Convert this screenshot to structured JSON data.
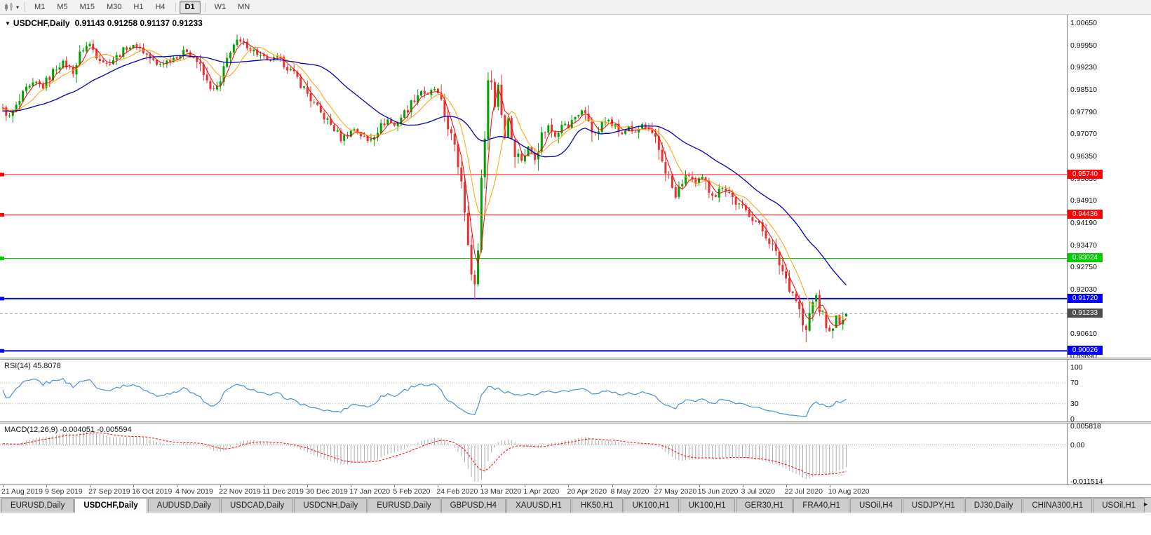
{
  "icons": {
    "chart_marker": "▼",
    "toolbar_caret": "▾",
    "tab_scroll_right": "►"
  },
  "toolbar": {
    "periods": [
      {
        "label": "M1",
        "active": false
      },
      {
        "label": "M5",
        "active": false
      },
      {
        "label": "M15",
        "active": false
      },
      {
        "label": "M30",
        "active": false
      },
      {
        "label": "H1",
        "active": false
      },
      {
        "label": "H4",
        "active": false
      },
      {
        "label": "D1",
        "active": true
      },
      {
        "label": "W1",
        "active": false
      },
      {
        "label": "MN",
        "active": false
      }
    ]
  },
  "chart": {
    "symbol_title": "USDCHF,Daily",
    "ohlc_text": "0.91143 0.91258 0.91137 0.91233",
    "open": "0.91143",
    "high": "0.91258",
    "low": "0.91137",
    "close": "0.91233",
    "last_price_label": "0.91233",
    "price_ticks": [
      "1.00650",
      "0.99950",
      "0.99230",
      "0.98510",
      "0.97790",
      "0.97070",
      "0.96350",
      "0.95630",
      "0.94910",
      "0.94190",
      "0.93470",
      "0.92750",
      "0.92030",
      "0.91310",
      "0.90610",
      "0.89890"
    ],
    "hlines": [
      {
        "price": 0.9574,
        "label": "0.95740",
        "color": "#ff0000",
        "thickness": 1
      },
      {
        "price": 0.94436,
        "label": "0.94436",
        "color": "#ff0000",
        "thickness": 1
      },
      {
        "price": 0.93024,
        "label": "0.93024",
        "color": "#00cc00",
        "thickness": 1
      },
      {
        "price": 0.9172,
        "label": "0.91720",
        "color": "#0000ff",
        "thickness": 2
      },
      {
        "price": 0.90026,
        "label": "0.90026",
        "color": "#0000ff",
        "thickness": 2
      }
    ],
    "dates": [
      "21 Aug 2019",
      "9 Sep 2019",
      "27 Sep 2019",
      "16 Oct 2019",
      "4 Nov 2019",
      "22 Nov 2019",
      "11 Dec 2019",
      "30 Dec 2019",
      "17 Jan 2020",
      "5 Feb 2020",
      "24 Feb 2020",
      "13 Mar 2020",
      "1 Apr 2020",
      "20 Apr 2020",
      "8 May 2020",
      "27 May 2020",
      "15 Jun 2020",
      "3 Jul 2020",
      "22 Jul 2020",
      "10 Aug 2020"
    ]
  },
  "rsi_panel": {
    "label": "RSI(14) 45.8078",
    "period": 14,
    "last_value": 45.8078,
    "ticks": [
      "100",
      "70",
      "30",
      "0"
    ],
    "tick_values": [
      100,
      70,
      30,
      0
    ],
    "level_lines": [
      70,
      30
    ],
    "line_color": "#4a90d9"
  },
  "macd_panel": {
    "label": "MACD(12,26,9) -0.004051 -0.005594",
    "last_macd": -0.004051,
    "last_signal": -0.005594,
    "ticks": [
      "0.005818",
      "0.00",
      "-0.011514"
    ],
    "tick_values": [
      0.005818,
      0,
      -0.011514
    ],
    "axis_max": 0.005818,
    "axis_min": -0.011514
  },
  "tabs": [
    {
      "label": "EURUSD,Daily",
      "active": false
    },
    {
      "label": "USDCHF,Daily",
      "active": true
    },
    {
      "label": "AUDUSD,Daily",
      "active": false
    },
    {
      "label": "USDCAD,Daily",
      "active": false
    },
    {
      "label": "USDCNH,Daily",
      "active": false
    },
    {
      "label": "EURUSD,Daily",
      "active": false
    },
    {
      "label": "GBPUSD,H4",
      "active": false
    },
    {
      "label": "XAUUSD,H1",
      "active": false
    },
    {
      "label": "HK50,H1",
      "active": false
    },
    {
      "label": "UK100,H1",
      "active": false
    },
    {
      "label": "UK100,H1",
      "active": false
    },
    {
      "label": "GER30,H1",
      "active": false
    },
    {
      "label": "FRA40,H1",
      "active": false
    },
    {
      "label": "USOil,H4",
      "active": false
    },
    {
      "label": "USDJPY,H1",
      "active": false
    },
    {
      "label": "DJ30,Daily",
      "active": false
    },
    {
      "label": "CHINA300,H1",
      "active": false
    },
    {
      "label": "USOil,H1",
      "active": false
    }
  ],
  "chart_data": {
    "type": "candlestick",
    "symbol": "USDCHF",
    "timeframe": "Daily",
    "visible_bars": 253,
    "bars_per_label": 13,
    "price_range_visible": [
      0.8989,
      1.0065
    ],
    "up_color": "#00a000",
    "down_color": "#e83232",
    "ohlc_current": {
      "open": 0.91143,
      "high": 0.91258,
      "low": 0.91137,
      "close": 0.91233
    },
    "close_anchors": [
      [
        0,
        0.9785
      ],
      [
        2,
        0.9762
      ],
      [
        4,
        0.9792
      ],
      [
        7,
        0.9848
      ],
      [
        10,
        0.9872
      ],
      [
        12,
        0.9858
      ],
      [
        14,
        0.9892
      ],
      [
        16,
        0.9922
      ],
      [
        18,
        0.9938
      ],
      [
        21,
        0.9908
      ],
      [
        24,
        0.9984
      ],
      [
        26,
        0.9996
      ],
      [
        28,
        0.9962
      ],
      [
        31,
        0.9932
      ],
      [
        34,
        0.9956
      ],
      [
        37,
        0.9986
      ],
      [
        40,
        0.9992
      ],
      [
        43,
        0.9962
      ],
      [
        46,
        0.9928
      ],
      [
        49,
        0.9942
      ],
      [
        52,
        0.9958
      ],
      [
        55,
        0.9976
      ],
      [
        58,
        0.9942
      ],
      [
        61,
        0.9872
      ],
      [
        63,
        0.9848
      ],
      [
        65,
        0.9868
      ],
      [
        68,
        0.9984
      ],
      [
        70,
        1.0006
      ],
      [
        73,
        0.9992
      ],
      [
        76,
        0.9966
      ],
      [
        79,
        0.9942
      ],
      [
        82,
        0.9952
      ],
      [
        85,
        0.9922
      ],
      [
        88,
        0.9886
      ],
      [
        91,
        0.9836
      ],
      [
        93,
        0.9802
      ],
      [
        95,
        0.9772
      ],
      [
        97,
        0.9748
      ],
      [
        99,
        0.9722
      ],
      [
        101,
        0.9688
      ],
      [
        103,
        0.9706
      ],
      [
        105,
        0.9722
      ],
      [
        107,
        0.9702
      ],
      [
        109,
        0.9682
      ],
      [
        111,
        0.9706
      ],
      [
        113,
        0.9732
      ],
      [
        115,
        0.9752
      ],
      [
        117,
        0.9732
      ],
      [
        119,
        0.9762
      ],
      [
        121,
        0.9788
      ],
      [
        123,
        0.9822
      ],
      [
        125,
        0.9846
      ],
      [
        127,
        0.983
      ],
      [
        129,
        0.9852
      ],
      [
        131,
        0.9796
      ],
      [
        133,
        0.9736
      ],
      [
        135,
        0.9652
      ],
      [
        137,
        0.9562
      ],
      [
        139,
        0.9368
      ],
      [
        140,
        0.9248
      ],
      [
        141,
        0.9205
      ],
      [
        142,
        0.9336
      ],
      [
        143,
        0.9562
      ],
      [
        144,
        0.9708
      ],
      [
        145,
        0.9862
      ],
      [
        146,
        0.9896
      ],
      [
        147,
        0.9792
      ],
      [
        148,
        0.9866
      ],
      [
        149,
        0.9776
      ],
      [
        150,
        0.9696
      ],
      [
        151,
        0.9758
      ],
      [
        152,
        0.9696
      ],
      [
        153,
        0.9652
      ],
      [
        155,
        0.9622
      ],
      [
        157,
        0.9662
      ],
      [
        159,
        0.9632
      ],
      [
        161,
        0.9702
      ],
      [
        163,
        0.9732
      ],
      [
        165,
        0.9702
      ],
      [
        167,
        0.9742
      ],
      [
        169,
        0.9726
      ],
      [
        171,
        0.9762
      ],
      [
        173,
        0.9782
      ],
      [
        175,
        0.9752
      ],
      [
        177,
        0.9702
      ],
      [
        179,
        0.9736
      ],
      [
        181,
        0.9756
      ],
      [
        183,
        0.9732
      ],
      [
        185,
        0.9702
      ],
      [
        187,
        0.9732
      ],
      [
        189,
        0.9706
      ],
      [
        191,
        0.9736
      ],
      [
        193,
        0.9712
      ],
      [
        195,
        0.9682
      ],
      [
        197,
        0.9622
      ],
      [
        199,
        0.9562
      ],
      [
        201,
        0.9498
      ],
      [
        203,
        0.9552
      ],
      [
        205,
        0.9572
      ],
      [
        207,
        0.9542
      ],
      [
        209,
        0.9562
      ],
      [
        211,
        0.9522
      ],
      [
        213,
        0.9506
      ],
      [
        215,
        0.9536
      ],
      [
        217,
        0.9516
      ],
      [
        219,
        0.9482
      ],
      [
        221,
        0.9466
      ],
      [
        223,
        0.9446
      ],
      [
        225,
        0.9422
      ],
      [
        227,
        0.9392
      ],
      [
        229,
        0.9362
      ],
      [
        231,
        0.9312
      ],
      [
        233,
        0.9262
      ],
      [
        235,
        0.9212
      ],
      [
        237,
        0.9172
      ],
      [
        238,
        0.9132
      ],
      [
        239,
        0.9086
      ],
      [
        240,
        0.9062
      ],
      [
        241,
        0.9122
      ],
      [
        242,
        0.9156
      ],
      [
        243,
        0.9182
      ],
      [
        244,
        0.9142
      ],
      [
        245,
        0.9112
      ],
      [
        246,
        0.9086
      ],
      [
        247,
        0.9062
      ],
      [
        248,
        0.9092
      ],
      [
        249,
        0.9112
      ],
      [
        250,
        0.9086
      ],
      [
        251,
        0.9106
      ],
      [
        252,
        0.91233
      ]
    ],
    "wick_overrides": [
      {
        "i": 70,
        "high": 1.0028
      },
      {
        "i": 141,
        "low": 0.9168
      },
      {
        "i": 146,
        "high": 0.9912
      },
      {
        "i": 240,
        "low": 0.903
      }
    ],
    "moving_averages": [
      {
        "name": "MA fast",
        "period": 4,
        "color": "#ff0000",
        "width": 1
      },
      {
        "name": "MA medium",
        "period": 9,
        "color": "#ffa200",
        "width": 1
      },
      {
        "name": "MA slow",
        "period": 30,
        "color": "#0000bb",
        "width": 1.3
      }
    ],
    "indicators": {
      "rsi_period": 14,
      "rsi_color": "#4a90d9",
      "macd_fast": 12,
      "macd_slow": 26,
      "macd_signal": 9,
      "macd_histogram_color": "#ababab",
      "macd_signal_color": "#ff0000"
    }
  }
}
